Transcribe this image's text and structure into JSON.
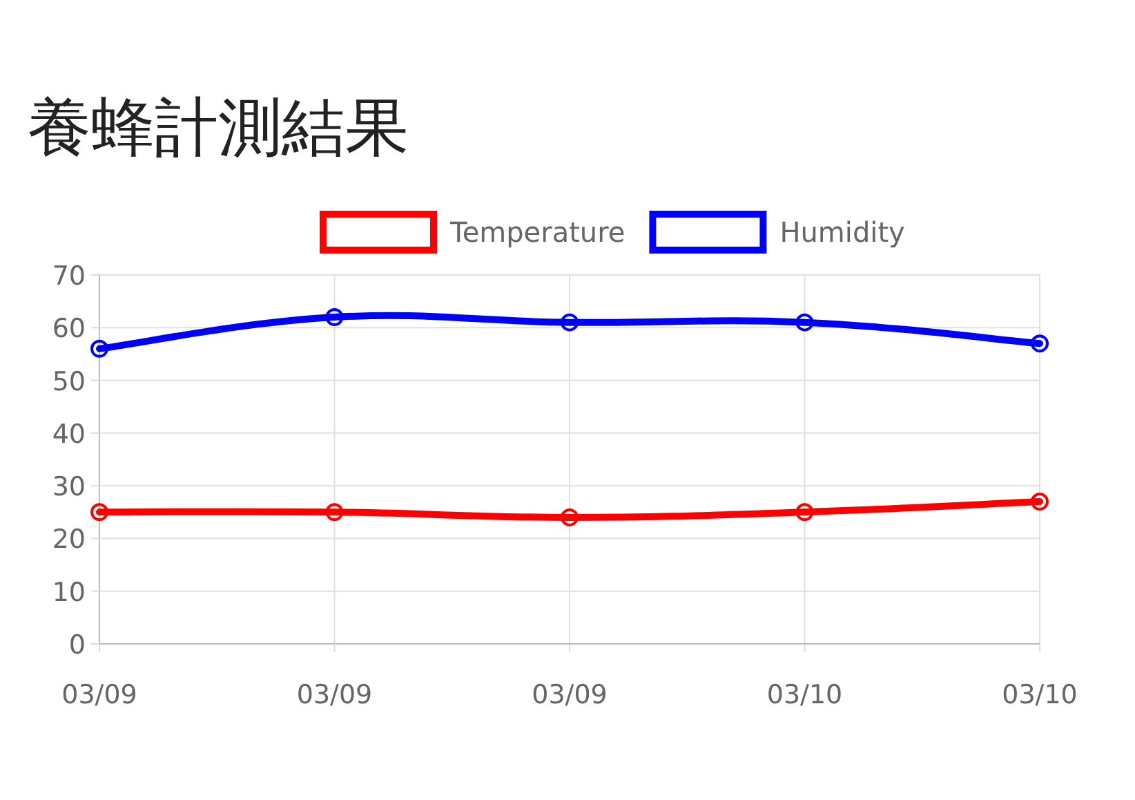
{
  "chart_data": {
    "type": "line",
    "title": "養蜂計測結果",
    "categories": [
      "03/09",
      "03/09",
      "03/09",
      "03/10",
      "03/10"
    ],
    "series": [
      {
        "name": "Temperature",
        "color": "#ff0000",
        "values": [
          25,
          25,
          24,
          25,
          27
        ]
      },
      {
        "name": "Humidity",
        "color": "#0000ff",
        "values": [
          56,
          62,
          61,
          61,
          57
        ]
      }
    ],
    "ylim": [
      0,
      70
    ],
    "yticks": [
      0,
      10,
      20,
      30,
      40,
      50,
      60,
      70
    ],
    "grid": true,
    "legend": "top",
    "marker": "circle"
  }
}
